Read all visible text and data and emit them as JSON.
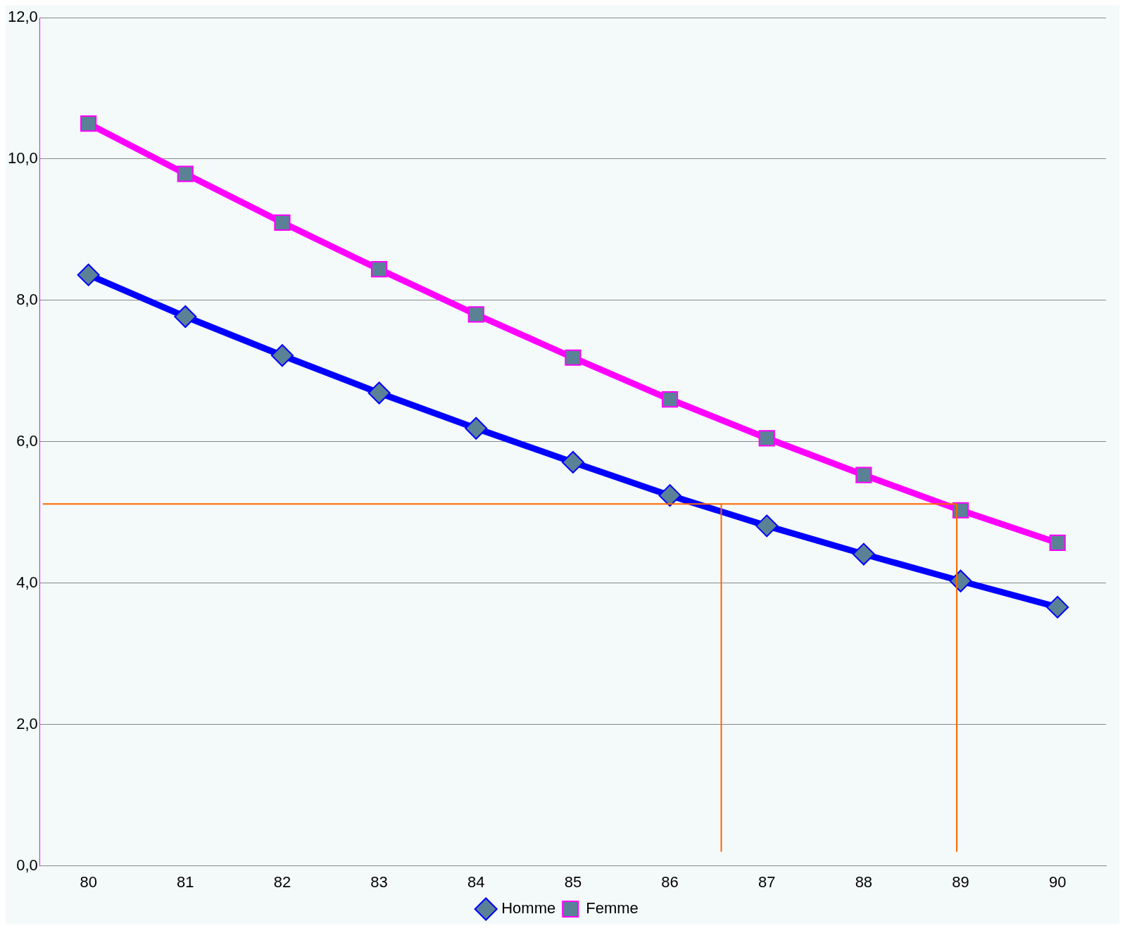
{
  "chart_data": {
    "type": "line",
    "x": [
      80,
      81,
      82,
      83,
      84,
      85,
      86,
      87,
      88,
      89,
      90
    ],
    "xlim": [
      79.5,
      90.5
    ],
    "xticks": [
      80,
      81,
      82,
      83,
      84,
      85,
      86,
      87,
      88,
      89,
      90
    ],
    "ylim": [
      0,
      12
    ],
    "yticks": [
      {
        "value": 0,
        "label": "0,0"
      },
      {
        "value": 2,
        "label": "2,0"
      },
      {
        "value": 4,
        "label": "4,0"
      },
      {
        "value": 6,
        "label": "6,0"
      },
      {
        "value": 8,
        "label": "8,0"
      },
      {
        "value": 10,
        "label": "10,0"
      },
      {
        "value": 12,
        "label": "12,0"
      }
    ],
    "grid": "y",
    "legend": "bottom",
    "series": [
      {
        "name": "Homme",
        "color": "#0000ff",
        "marker": "diamond",
        "values": [
          8.36,
          7.77,
          7.22,
          6.69,
          6.19,
          5.71,
          5.24,
          4.81,
          4.41,
          4.03,
          3.66
        ]
      },
      {
        "name": "Femme",
        "color": "#ff00ff",
        "marker": "square",
        "values": [
          10.5,
          9.79,
          9.1,
          8.44,
          7.8,
          7.19,
          6.6,
          6.05,
          5.53,
          5.03,
          4.57
        ]
      }
    ],
    "ref_lines": [
      {
        "axis": "y",
        "value": 5.12,
        "color": "#ff6600"
      },
      {
        "axis": "x",
        "value": 86.53,
        "color": "#ff6600"
      },
      {
        "axis": "x",
        "value": 88.96,
        "color": "#ff6600"
      }
    ]
  }
}
